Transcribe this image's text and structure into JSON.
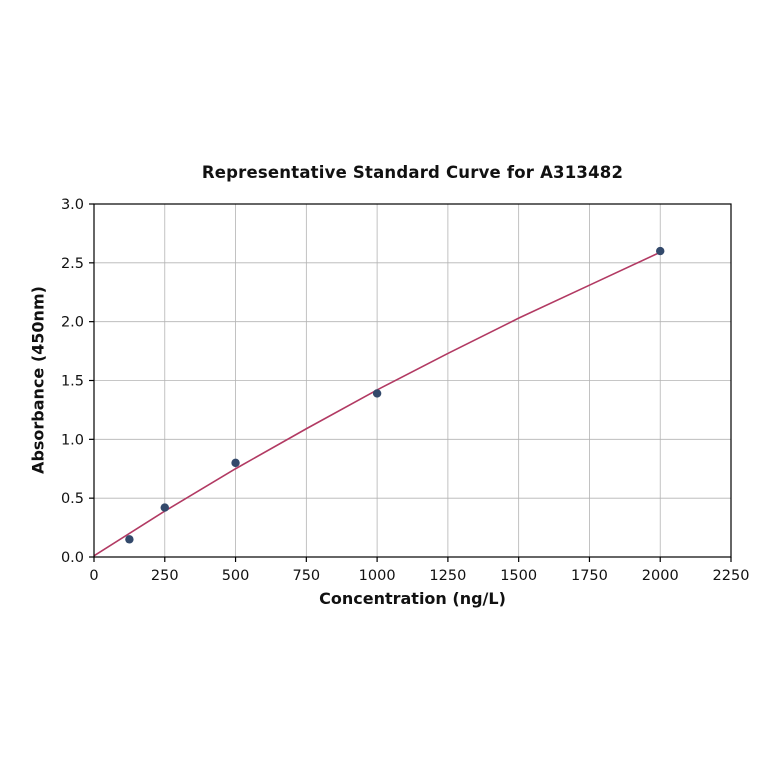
{
  "chart_data": {
    "type": "scatter",
    "title": "Representative Standard Curve for A313482",
    "xlabel": "Concentration (ng/L)",
    "ylabel": "Absorbance (450nm)",
    "xlim": [
      0,
      2250
    ],
    "ylim": [
      0.0,
      3.0
    ],
    "grid": true,
    "legend_position": "none",
    "xticks": {
      "values": [
        0,
        250,
        500,
        750,
        1000,
        1250,
        1500,
        1750,
        2000,
        2250
      ],
      "labels": [
        "0",
        "250",
        "500",
        "750",
        "1000",
        "1250",
        "1500",
        "1750",
        "2000",
        "2250"
      ]
    },
    "yticks": {
      "values": [
        0.0,
        0.5,
        1.0,
        1.5,
        2.0,
        2.5,
        3.0
      ],
      "labels": [
        "0.0",
        "0.5",
        "1.0",
        "1.5",
        "2.0",
        "2.5",
        "3.0"
      ]
    },
    "series": [
      {
        "name": "standard-points",
        "type": "scatter",
        "color": "#33496b",
        "x": [
          125,
          250,
          500,
          1000,
          2000
        ],
        "y": [
          0.15,
          0.42,
          0.8,
          1.39,
          2.6
        ]
      },
      {
        "name": "fit-line",
        "type": "line",
        "color": "#b23a63",
        "x": [
          0,
          125,
          250,
          500,
          750,
          1000,
          1250,
          1500,
          1750,
          2000
        ],
        "y": [
          0.01,
          0.2,
          0.39,
          0.75,
          1.09,
          1.42,
          1.73,
          2.03,
          2.31,
          2.59
        ]
      }
    ],
    "colors": {
      "grid": "#b3b3b3",
      "axis": "#000000",
      "tick_text": "#111111",
      "background": "#ffffff"
    }
  }
}
